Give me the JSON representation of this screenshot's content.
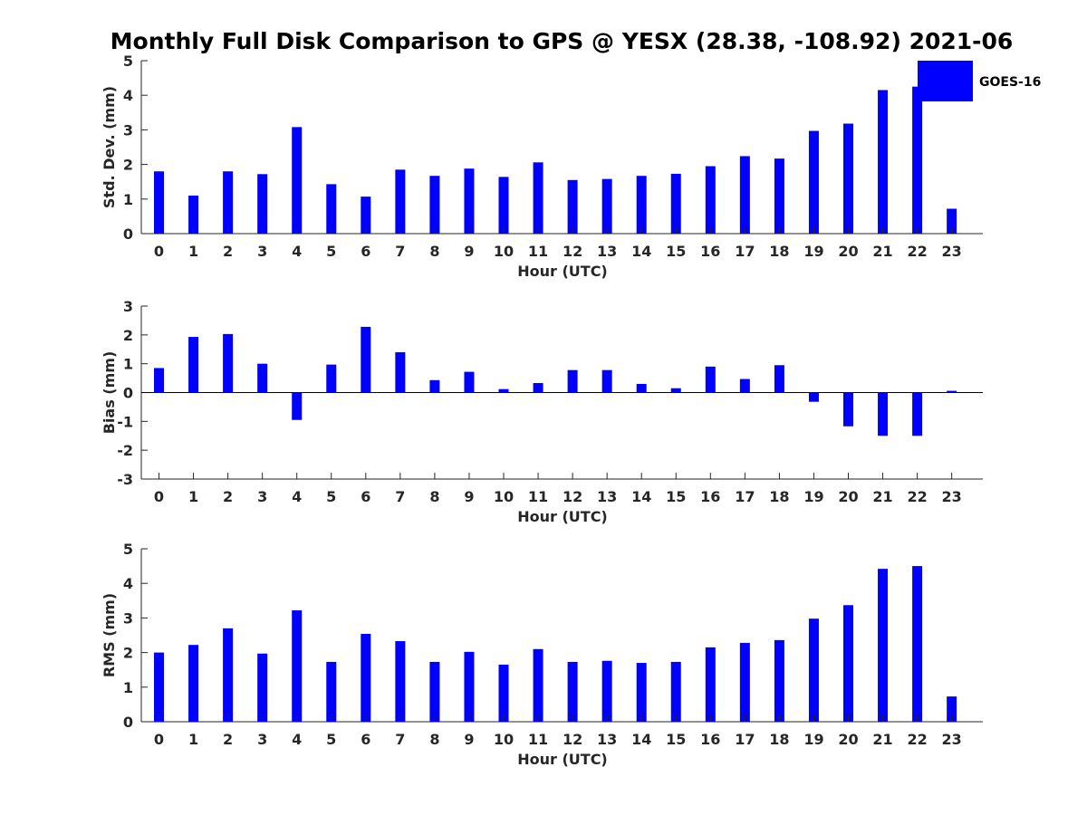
{
  "figure_title": "Monthly Full Disk Comparison to GPS @ YESX (28.38, -108.92) 2021-06",
  "bar_color": "#0000ff",
  "legend": {
    "label": "GOES-16"
  },
  "chart_data": [
    {
      "type": "bar",
      "title": "Monthly Full Disk Comparison to GPS @ YESX (28.38, -108.92) 2021-06",
      "xlabel": "Hour (UTC)",
      "ylabel": "Std. Dev. (mm)",
      "ylim": [
        0,
        5
      ],
      "yticks": [
        "0",
        "1",
        "2",
        "3",
        "4",
        "5"
      ],
      "categories": [
        "0",
        "1",
        "2",
        "3",
        "4",
        "5",
        "6",
        "7",
        "8",
        "9",
        "10",
        "11",
        "12",
        "13",
        "14",
        "15",
        "16",
        "17",
        "18",
        "19",
        "20",
        "21",
        "22",
        "23"
      ],
      "series": [
        {
          "name": "GOES-16",
          "values": [
            1.8,
            1.1,
            1.8,
            1.72,
            3.08,
            1.43,
            1.07,
            1.85,
            1.67,
            1.88,
            1.64,
            2.06,
            1.55,
            1.58,
            1.67,
            1.73,
            1.95,
            2.24,
            2.17,
            2.97,
            3.18,
            4.15,
            4.25,
            0.72
          ]
        }
      ]
    },
    {
      "type": "bar",
      "xlabel": "Hour (UTC)",
      "ylabel": "Bias (mm)",
      "ylim": [
        -3,
        3
      ],
      "yticks": [
        "-3",
        "-2",
        "-1",
        "0",
        "1",
        "2",
        "3"
      ],
      "zero_line": true,
      "categories": [
        "0",
        "1",
        "2",
        "3",
        "4",
        "5",
        "6",
        "7",
        "8",
        "9",
        "10",
        "11",
        "12",
        "13",
        "14",
        "15",
        "16",
        "17",
        "18",
        "19",
        "20",
        "21",
        "22",
        "23"
      ],
      "series": [
        {
          "name": "GOES-16",
          "values": [
            0.85,
            1.93,
            2.03,
            1.0,
            -0.95,
            0.97,
            2.28,
            1.4,
            0.43,
            0.72,
            0.12,
            0.33,
            0.78,
            0.78,
            0.3,
            0.15,
            0.9,
            0.47,
            0.95,
            -0.32,
            -1.17,
            -1.5,
            -1.5,
            0.06
          ]
        }
      ]
    },
    {
      "type": "bar",
      "xlabel": "Hour (UTC)",
      "ylabel": "RMS (mm)",
      "ylim": [
        0,
        5
      ],
      "yticks": [
        "0",
        "1",
        "2",
        "3",
        "4",
        "5"
      ],
      "categories": [
        "0",
        "1",
        "2",
        "3",
        "4",
        "5",
        "6",
        "7",
        "8",
        "9",
        "10",
        "11",
        "12",
        "13",
        "14",
        "15",
        "16",
        "17",
        "18",
        "19",
        "20",
        "21",
        "22",
        "23"
      ],
      "series": [
        {
          "name": "GOES-16",
          "values": [
            2.0,
            2.22,
            2.7,
            1.97,
            3.22,
            1.73,
            2.54,
            2.33,
            1.73,
            2.02,
            1.65,
            2.1,
            1.73,
            1.76,
            1.7,
            1.73,
            2.15,
            2.28,
            2.36,
            2.98,
            3.37,
            4.42,
            4.5,
            0.73
          ]
        }
      ]
    }
  ]
}
